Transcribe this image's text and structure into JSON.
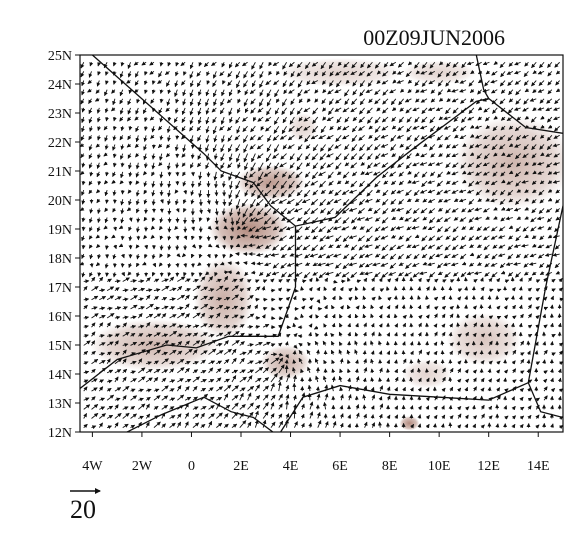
{
  "title": "00Z09JUN2006",
  "map": {
    "lon_range": [
      -4.5,
      15
    ],
    "lat_range": [
      12,
      25
    ],
    "x_ticks": [
      {
        "value": -4,
        "label": "4W"
      },
      {
        "value": -2,
        "label": "2W"
      },
      {
        "value": 0,
        "label": "0"
      },
      {
        "value": 2,
        "label": "2E"
      },
      {
        "value": 4,
        "label": "4E"
      },
      {
        "value": 6,
        "label": "6E"
      },
      {
        "value": 8,
        "label": "8E"
      },
      {
        "value": 10,
        "label": "10E"
      },
      {
        "value": 12,
        "label": "12E"
      },
      {
        "value": 14,
        "label": "14E"
      }
    ],
    "y_ticks": [
      {
        "value": 25,
        "label": "25N"
      },
      {
        "value": 24,
        "label": "24N"
      },
      {
        "value": 23,
        "label": "23N"
      },
      {
        "value": 22,
        "label": "22N"
      },
      {
        "value": 21,
        "label": "21N"
      },
      {
        "value": 20,
        "label": "20N"
      },
      {
        "value": 19,
        "label": "19N"
      },
      {
        "value": 18,
        "label": "18N"
      },
      {
        "value": 17,
        "label": "17N"
      },
      {
        "value": 16,
        "label": "16N"
      },
      {
        "value": 15,
        "label": "15N"
      },
      {
        "value": 14,
        "label": "14N"
      },
      {
        "value": 13,
        "label": "13N"
      },
      {
        "value": 12,
        "label": "12N"
      }
    ],
    "shading_color": "#a06e5f",
    "vector_color": "#111111",
    "reference_vector": {
      "label": "20",
      "magnitude": 20
    },
    "convergence_centers": [
      {
        "lon": 3.7,
        "lat": 14.4,
        "strength": 1.0
      },
      {
        "lon": 2.0,
        "lat": 19.2,
        "strength": 1.0
      }
    ],
    "shaded_regions": [
      {
        "lon": 2.3,
        "lat": 19.0,
        "rlon": 1.6,
        "rlat": 0.9,
        "opacity": 0.8
      },
      {
        "lon": 3.2,
        "lat": 20.6,
        "rlon": 1.4,
        "rlat": 0.6,
        "opacity": 0.7
      },
      {
        "lon": 1.3,
        "lat": 16.6,
        "rlon": 1.2,
        "rlat": 1.4,
        "opacity": 0.55
      },
      {
        "lon": -1.5,
        "lat": 15.0,
        "rlon": 2.6,
        "rlat": 0.9,
        "opacity": 0.5
      },
      {
        "lon": 3.8,
        "lat": 14.4,
        "rlon": 1.0,
        "rlat": 0.6,
        "opacity": 0.55
      },
      {
        "lon": 13.0,
        "lat": 21.3,
        "rlon": 2.4,
        "rlat": 1.6,
        "opacity": 0.5
      },
      {
        "lon": 11.8,
        "lat": 15.2,
        "rlon": 1.5,
        "rlat": 0.9,
        "opacity": 0.4
      },
      {
        "lon": 9.5,
        "lat": 14.0,
        "rlon": 1.0,
        "rlat": 0.5,
        "opacity": 0.3
      },
      {
        "lon": 8.8,
        "lat": 12.3,
        "rlon": 0.4,
        "rlat": 0.25,
        "opacity": 0.8
      },
      {
        "lon": 6.0,
        "lat": 24.4,
        "rlon": 2.5,
        "rlat": 0.5,
        "opacity": 0.3
      },
      {
        "lon": 10.0,
        "lat": 24.4,
        "rlon": 1.5,
        "rlat": 0.4,
        "opacity": 0.3
      },
      {
        "lon": 4.5,
        "lat": 22.5,
        "rlon": 0.6,
        "rlat": 0.5,
        "opacity": 0.3
      }
    ],
    "borders": [
      [
        [
          -4.0,
          25.0
        ],
        [
          0.5,
          21.6
        ],
        [
          1.2,
          21.0
        ],
        [
          2.5,
          20.6
        ],
        [
          3.2,
          19.8
        ],
        [
          4.2,
          19.1
        ],
        [
          5.8,
          19.4
        ],
        [
          7.5,
          20.8
        ],
        [
          9.0,
          21.8
        ],
        [
          11.5,
          23.4
        ],
        [
          12.0,
          23.5
        ]
      ],
      [
        [
          -4.5,
          13.5
        ],
        [
          -3.0,
          14.5
        ],
        [
          -1.0,
          15.0
        ],
        [
          0.2,
          14.9
        ],
        [
          1.5,
          15.3
        ],
        [
          3.5,
          15.3
        ],
        [
          4.0,
          16.5
        ],
        [
          4.2,
          17.0
        ],
        [
          4.2,
          19.1
        ]
      ],
      [
        [
          -2.6,
          12.0
        ],
        [
          -1.2,
          12.6
        ],
        [
          0.5,
          13.2
        ],
        [
          1.6,
          12.7
        ],
        [
          2.5,
          12.5
        ],
        [
          3.6,
          11.8
        ]
      ],
      [
        [
          3.6,
          12.0
        ],
        [
          4.5,
          13.2
        ],
        [
          6.0,
          13.6
        ],
        [
          8.0,
          13.3
        ],
        [
          10.0,
          13.2
        ],
        [
          12.0,
          13.1
        ],
        [
          13.6,
          13.7
        ]
      ],
      [
        [
          12.0,
          23.5
        ],
        [
          13.5,
          22.5
        ],
        [
          15.0,
          22.3
        ]
      ],
      [
        [
          11.5,
          25.0
        ],
        [
          11.8,
          23.8
        ],
        [
          12.0,
          23.5
        ]
      ],
      [
        [
          15.0,
          19.8
        ],
        [
          14.3,
          17.0
        ],
        [
          13.6,
          13.7
        ],
        [
          14.1,
          12.7
        ],
        [
          15.0,
          12.5
        ]
      ]
    ]
  }
}
